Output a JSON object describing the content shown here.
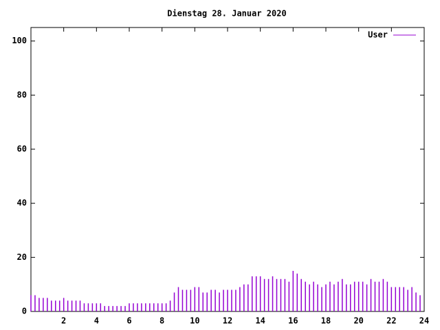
{
  "chart_data": {
    "type": "impulse",
    "title": "Dienstag 28. Januar 2020",
    "x": [
      0,
      0.25,
      0.5,
      0.75,
      1,
      1.25,
      1.5,
      1.75,
      2,
      2.25,
      2.5,
      2.75,
      3,
      3.25,
      3.5,
      3.75,
      4,
      4.25,
      4.5,
      4.75,
      5,
      5.25,
      5.5,
      5.75,
      6,
      6.25,
      6.5,
      6.75,
      7,
      7.25,
      7.5,
      7.75,
      8,
      8.25,
      8.5,
      8.75,
      9,
      9.25,
      9.5,
      9.75,
      10,
      10.25,
      10.5,
      10.75,
      11,
      11.25,
      11.5,
      11.75,
      12,
      12.25,
      12.5,
      12.75,
      13,
      13.25,
      13.5,
      13.75,
      14,
      14.25,
      14.5,
      14.75,
      15,
      15.25,
      15.5,
      15.75,
      16,
      16.25,
      16.5,
      16.75,
      17,
      17.25,
      17.5,
      17.75,
      18,
      18.25,
      18.5,
      18.75,
      19,
      19.25,
      19.5,
      19.75,
      20,
      20.25,
      20.5,
      20.75,
      21,
      21.25,
      21.5,
      21.75,
      22,
      22.25,
      22.5,
      22.75,
      23,
      23.25,
      23.5,
      23.75
    ],
    "series": [
      {
        "name": "User",
        "color": "#9400d3",
        "values": [
          6,
          6,
          5,
          5,
          5,
          4,
          4,
          4,
          5,
          4,
          4,
          4,
          4,
          3,
          3,
          3,
          3,
          3,
          2,
          2,
          2,
          2,
          2,
          2,
          3,
          3,
          3,
          3,
          3,
          3,
          3,
          3,
          3,
          3,
          4,
          7,
          9,
          8,
          8,
          8,
          9,
          9,
          7,
          7,
          8,
          8,
          7,
          8,
          8,
          8,
          8,
          9,
          10,
          10,
          13,
          13,
          13,
          12,
          12,
          13,
          12,
          12,
          12,
          11,
          15,
          14,
          12,
          11,
          10,
          11,
          10,
          9,
          10,
          11,
          10,
          11,
          12,
          10,
          10,
          11,
          11,
          11,
          10,
          12,
          11,
          11,
          12,
          11,
          9,
          9,
          9,
          9,
          8,
          9,
          7,
          6
        ]
      }
    ],
    "xlim": [
      0,
      24
    ],
    "xticks": [
      2,
      4,
      6,
      8,
      10,
      12,
      14,
      16,
      18,
      20,
      22,
      24
    ],
    "ylim": [
      0,
      105
    ],
    "yticks": [
      0,
      20,
      40,
      60,
      80,
      100
    ]
  }
}
